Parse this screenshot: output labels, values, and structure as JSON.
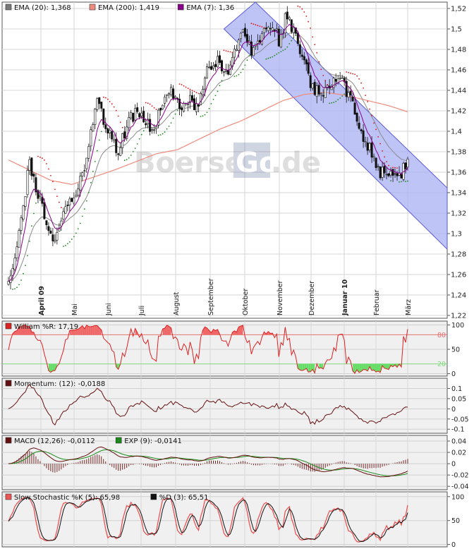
{
  "watermark": {
    "left": "Boerse",
    "box": "Go",
    "right": ".de"
  },
  "colors": {
    "background": "#ffffff",
    "panel_bg": "#f0f0f0",
    "grid": "#d6d6d6",
    "channel_fill": "#aab0f4",
    "channel_line": "#5a5ad8",
    "ema20": "#7a7a7a",
    "ema200": "#f08a7c",
    "ema7": "#880088",
    "psar_up": "#1a8a1a",
    "psar_down": "#dd1111",
    "williams": "#dd2222",
    "momentum": "#661111",
    "macd": "#661111",
    "macd_signal": "#1a8a1a",
    "stoch_k": "#ee5555",
    "stoch_d": "#111111",
    "fill_red": "#ee6666",
    "fill_green": "#66dd66"
  },
  "chart_data": [
    {
      "type": "line",
      "subtype": "candlestick",
      "legend": [
        {
          "label": "EMA (20): 1,368",
          "color": "#7a7a7a"
        },
        {
          "label": "EMA (200): 1,419",
          "color": "#f08a7c"
        },
        {
          "label": "EMA (7): 1,36",
          "color": "#880088"
        }
      ],
      "x_tick_labels": [
        "April 09",
        "Mai",
        "Juni",
        "Juli",
        "August",
        "September",
        "Oktober",
        "November",
        "Dezember",
        "Januar 10",
        "Februar",
        "März"
      ],
      "x_bold_labels": [
        "April 09",
        "Januar 10"
      ],
      "y_tick_labels": [
        "1,52",
        "1,5",
        "1,48",
        "1,46",
        "1,44",
        "1,42",
        "1,4",
        "1,38",
        "1,36",
        "1,34",
        "1,32",
        "1,3",
        "1,28",
        "1,26",
        "1,24",
        "1,22"
      ],
      "ylim": [
        1.22,
        1.52
      ],
      "price_path": [
        [
          0,
          1.255
        ],
        [
          2,
          1.265
        ],
        [
          6,
          1.31
        ],
        [
          10,
          1.37
        ],
        [
          14,
          1.34
        ],
        [
          18,
          1.31
        ],
        [
          22,
          1.29
        ],
        [
          26,
          1.32
        ],
        [
          31,
          1.34
        ],
        [
          36,
          1.36
        ],
        [
          42,
          1.43
        ],
        [
          47,
          1.4
        ],
        [
          52,
          1.38
        ],
        [
          57,
          1.41
        ],
        [
          62,
          1.42
        ],
        [
          68,
          1.4
        ],
        [
          73,
          1.425
        ],
        [
          77,
          1.44
        ],
        [
          82,
          1.425
        ],
        [
          87,
          1.43
        ],
        [
          90,
          1.42
        ],
        [
          94,
          1.46
        ],
        [
          99,
          1.47
        ],
        [
          103,
          1.455
        ],
        [
          107,
          1.48
        ],
        [
          111,
          1.5
        ],
        [
          115,
          1.48
        ],
        [
          119,
          1.49
        ],
        [
          124,
          1.505
        ],
        [
          128,
          1.49
        ],
        [
          132,
          1.515
        ],
        [
          136,
          1.49
        ],
        [
          140,
          1.47
        ],
        [
          144,
          1.44
        ],
        [
          149,
          1.435
        ],
        [
          154,
          1.45
        ],
        [
          158,
          1.45
        ],
        [
          162,
          1.43
        ],
        [
          167,
          1.4
        ],
        [
          172,
          1.38
        ],
        [
          176,
          1.36
        ],
        [
          180,
          1.36
        ],
        [
          185,
          1.355
        ],
        [
          189,
          1.37
        ]
      ],
      "ema200_path": [
        [
          0,
          1.372
        ],
        [
          10,
          1.362
        ],
        [
          20,
          1.352
        ],
        [
          30,
          1.348
        ],
        [
          40,
          1.355
        ],
        [
          50,
          1.362
        ],
        [
          60,
          1.37
        ],
        [
          70,
          1.378
        ],
        [
          80,
          1.382
        ],
        [
          90,
          1.392
        ],
        [
          100,
          1.402
        ],
        [
          110,
          1.41
        ],
        [
          120,
          1.42
        ],
        [
          130,
          1.43
        ],
        [
          140,
          1.436
        ],
        [
          150,
          1.438
        ],
        [
          160,
          1.435
        ],
        [
          170,
          1.43
        ],
        [
          180,
          1.425
        ],
        [
          189,
          1.419
        ]
      ],
      "channel": {
        "upper": [
          [
            115,
            1.53
          ],
          [
            210,
            1.34
          ]
        ],
        "lower": [
          [
            102,
            1.5
          ],
          [
            210,
            1.28
          ]
        ]
      }
    },
    {
      "type": "line",
      "legend": [
        {
          "label": "William %R: 17,19",
          "color": "#dd2222"
        }
      ],
      "y_tick_labels": [
        "100",
        "50",
        "0"
      ],
      "ylim": [
        -5,
        108
      ],
      "levels": [
        {
          "value": 80,
          "label": "80",
          "color": "#e57373"
        },
        {
          "value": 20,
          "label": "20",
          "color": "#7ed87e"
        }
      ]
    },
    {
      "type": "line",
      "legend": [
        {
          "label": "Momentum: (12): -0,0188",
          "color": "#661111"
        }
      ],
      "y_tick_labels": [
        "0.1",
        "0.05",
        "0",
        "-0.05",
        "-0.1"
      ],
      "ylim": [
        -0.12,
        0.15
      ]
    },
    {
      "type": "line",
      "legend": [
        {
          "label": "MACD (12,26): -0,0112",
          "color": "#661111"
        },
        {
          "label": "EXP (9): -0,0141",
          "color": "#1a8a1a"
        }
      ],
      "y_tick_labels": [
        "0.04",
        "0.02",
        "0",
        "-0.02",
        "-0.04"
      ],
      "ylim": [
        -0.046,
        0.05
      ]
    },
    {
      "type": "line",
      "legend": [
        {
          "label": "Slow Stochastic %K (5): 65,98",
          "color": "#ee5555"
        },
        {
          "label": "%D (3): 65,51",
          "color": "#111111"
        }
      ],
      "y_tick_labels": [
        "100",
        "50",
        "0"
      ],
      "ylim": [
        -5,
        110
      ]
    }
  ]
}
